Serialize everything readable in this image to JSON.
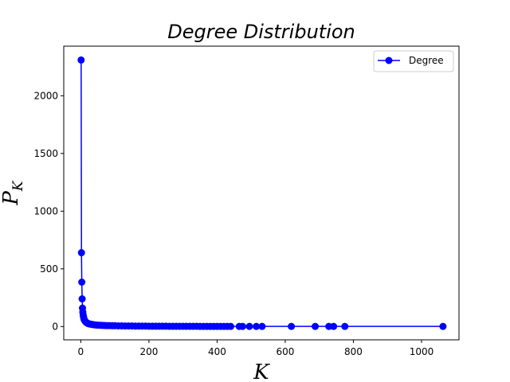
{
  "chart_data": {
    "type": "line",
    "title": "Degree Distribution",
    "xlabel": "K",
    "ylabel_base": "P",
    "ylabel_sub": "K",
    "xlim": [
      -50,
      1110
    ],
    "ylim": [
      -115,
      2430
    ],
    "xticks": [
      0,
      200,
      400,
      600,
      800,
      1000
    ],
    "yticks": [
      0,
      500,
      1000,
      1500,
      2000
    ],
    "legend": {
      "position": "top-right"
    },
    "series": [
      {
        "name": "Degree",
        "color": "#0000ff",
        "marker": "circle",
        "x": [
          1,
          2,
          3,
          4,
          5,
          6,
          7,
          8,
          9,
          10,
          12,
          14,
          16,
          18,
          20,
          23,
          26,
          30,
          34,
          38,
          42,
          47,
          52,
          58,
          64,
          70,
          77,
          85,
          93,
          100,
          110,
          120,
          130,
          140,
          150,
          160,
          170,
          180,
          190,
          200,
          210,
          220,
          230,
          240,
          250,
          260,
          270,
          280,
          290,
          300,
          310,
          320,
          330,
          340,
          350,
          360,
          370,
          380,
          390,
          400,
          410,
          420,
          430,
          440,
          465,
          475,
          495,
          515,
          532,
          618,
          688,
          728,
          742,
          775,
          1063
        ],
        "y": [
          2310,
          640,
          385,
          240,
          160,
          125,
          100,
          85,
          70,
          60,
          50,
          42,
          36,
          32,
          28,
          25,
          22,
          20,
          18,
          16,
          14,
          13,
          12,
          11,
          10,
          9,
          8,
          8,
          7,
          7,
          6,
          6,
          5,
          5,
          5,
          4,
          4,
          4,
          4,
          3,
          3,
          3,
          3,
          3,
          3,
          2,
          2,
          2,
          2,
          2,
          2,
          2,
          2,
          2,
          1,
          1,
          1,
          1,
          1,
          1,
          1,
          1,
          1,
          1,
          1,
          1,
          1,
          1,
          1,
          1,
          1,
          1,
          1,
          1,
          1
        ]
      }
    ]
  }
}
